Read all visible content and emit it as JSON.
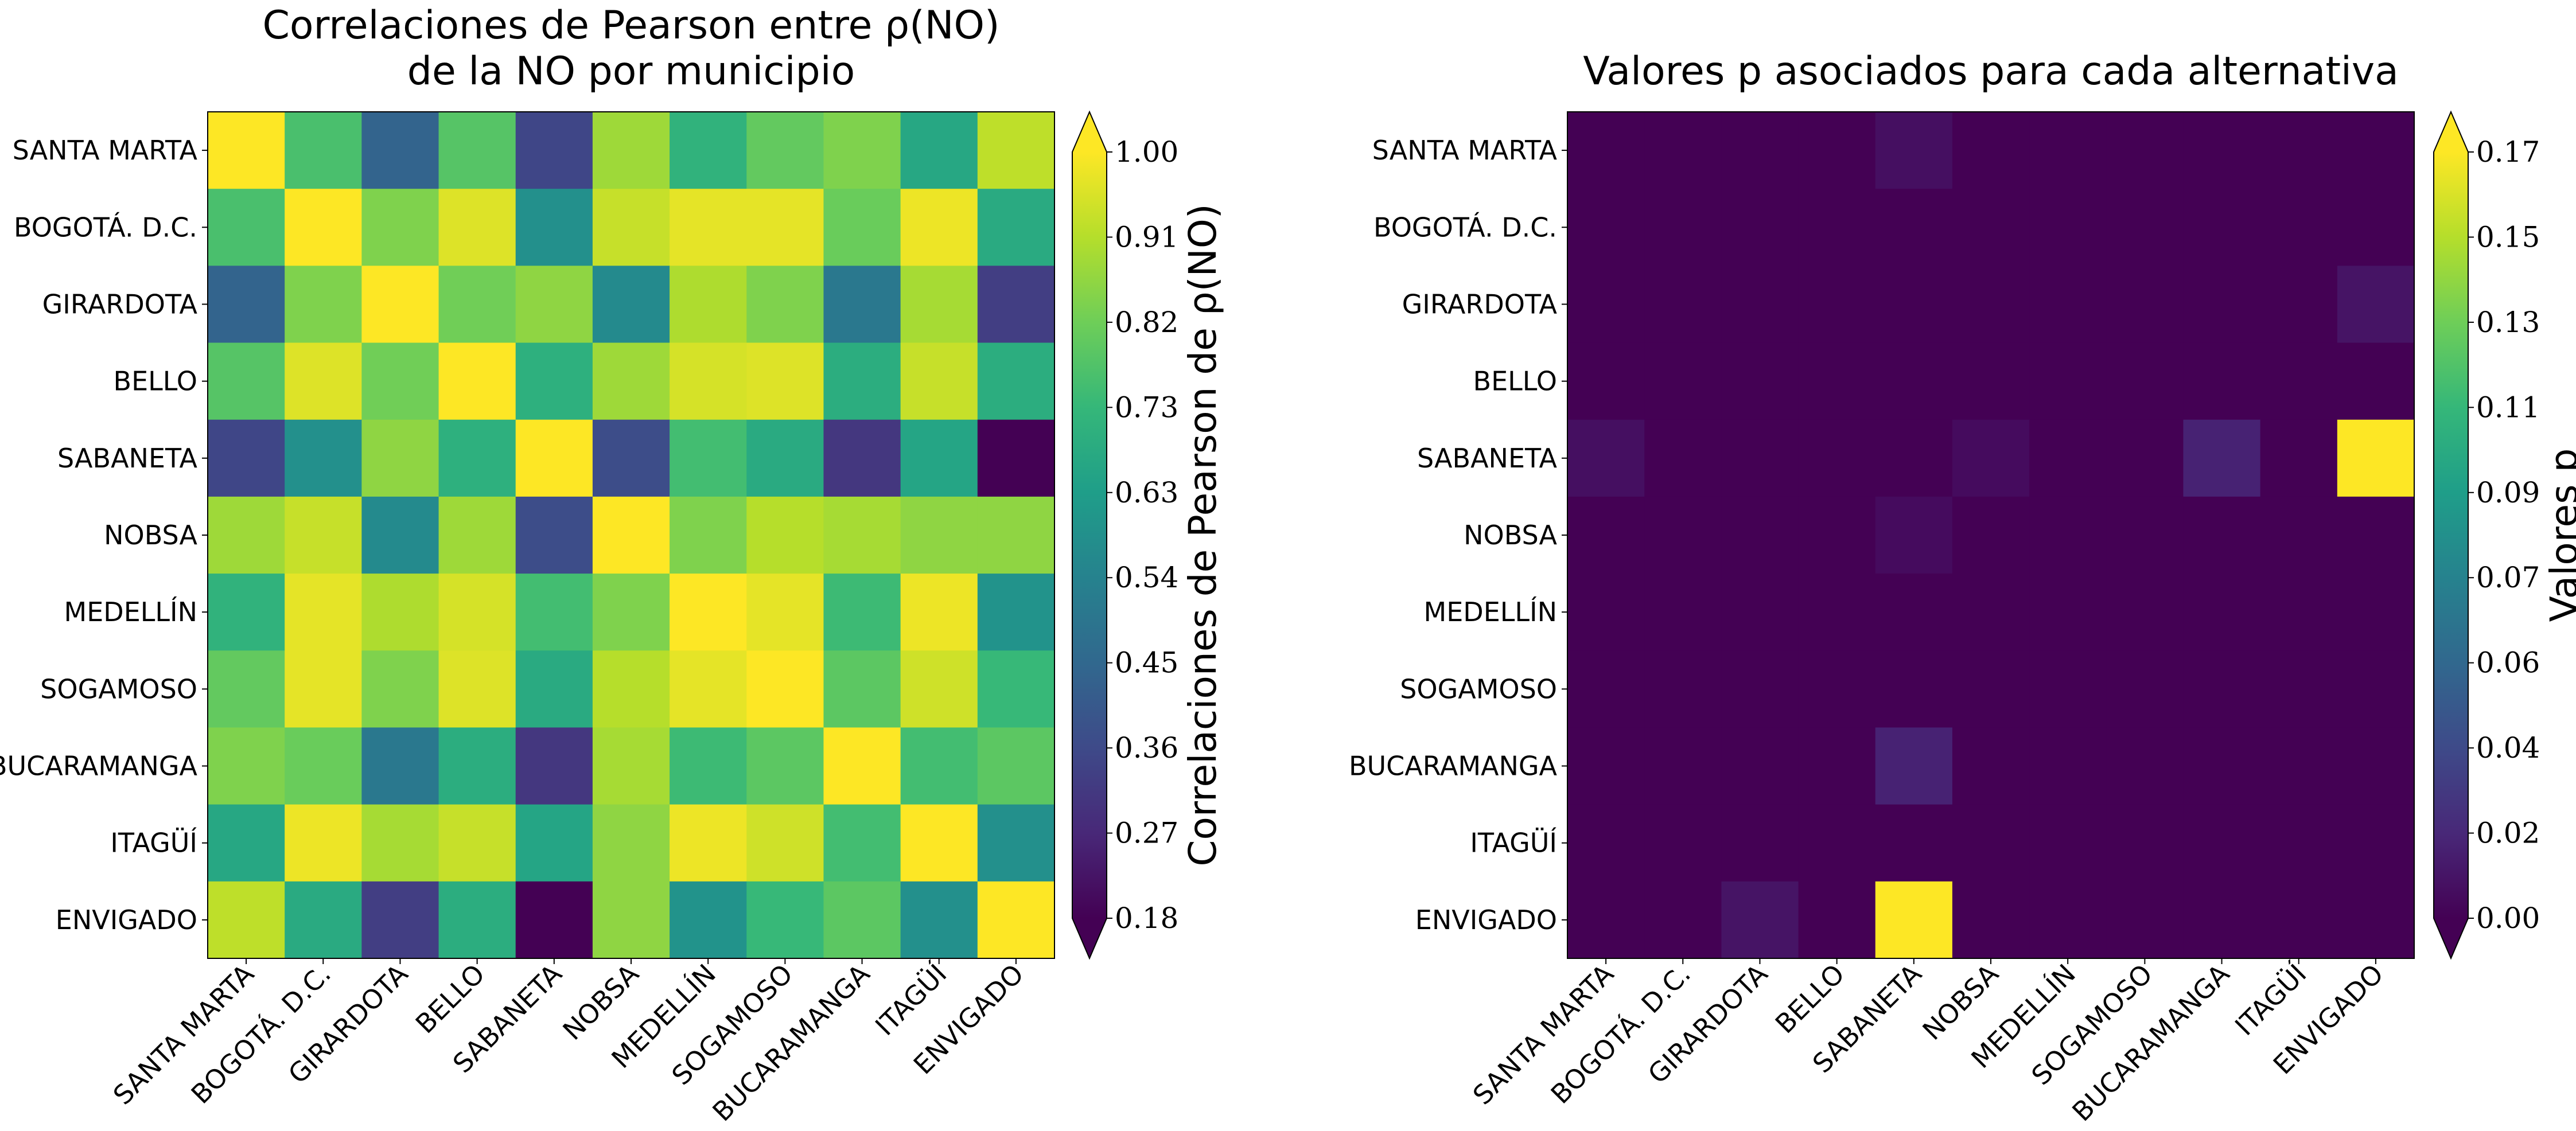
{
  "chart_data": [
    {
      "type": "heatmap",
      "title": "Correlaciones de Pearson entre ρ(NO) de la NO por municipio",
      "title_lines": [
        "Correlaciones de Pearson entre ρ(NO)",
        "de la NO por municipio"
      ],
      "x_categories": [
        "SANTA MARTA",
        "BOGOTÁ. D.C.",
        "GIRARDOTA",
        "BELLO",
        "SABANETA",
        "NOBSA",
        "MEDELLÍN",
        "SOGAMOSO",
        "BUCARAMANGA",
        "ITAGÜÍ",
        "ENVIGADO"
      ],
      "y_categories": [
        "SANTA MARTA",
        "BOGOTÁ. D.C.",
        "GIRARDOTA",
        "BELLO",
        "SABANETA",
        "NOBSA",
        "MEDELLÍN",
        "SOGAMOSO",
        "BUCARAMANGA",
        "ITAGÜÍ",
        "ENVIGADO"
      ],
      "values": [
        [
          1.0,
          0.76,
          0.44,
          0.78,
          0.35,
          0.88,
          0.71,
          0.8,
          0.84,
          0.67,
          0.92
        ],
        [
          0.76,
          1.0,
          0.84,
          0.96,
          0.59,
          0.93,
          0.97,
          0.97,
          0.81,
          0.98,
          0.68
        ],
        [
          0.44,
          0.84,
          1.0,
          0.82,
          0.86,
          0.57,
          0.9,
          0.84,
          0.51,
          0.89,
          0.33
        ],
        [
          0.78,
          0.96,
          0.82,
          1.0,
          0.7,
          0.88,
          0.95,
          0.96,
          0.69,
          0.93,
          0.69
        ],
        [
          0.35,
          0.59,
          0.86,
          0.7,
          1.0,
          0.37,
          0.75,
          0.68,
          0.31,
          0.66,
          0.18
        ],
        [
          0.88,
          0.93,
          0.57,
          0.88,
          0.37,
          1.0,
          0.84,
          0.91,
          0.89,
          0.86,
          0.86
        ],
        [
          0.71,
          0.97,
          0.9,
          0.95,
          0.75,
          0.84,
          1.0,
          0.97,
          0.74,
          0.98,
          0.6
        ],
        [
          0.8,
          0.97,
          0.84,
          0.96,
          0.68,
          0.91,
          0.97,
          1.0,
          0.79,
          0.94,
          0.73
        ],
        [
          0.84,
          0.81,
          0.51,
          0.69,
          0.31,
          0.89,
          0.74,
          0.79,
          1.0,
          0.75,
          0.79
        ],
        [
          0.67,
          0.98,
          0.89,
          0.93,
          0.66,
          0.86,
          0.98,
          0.94,
          0.75,
          1.0,
          0.59
        ],
        [
          0.92,
          0.68,
          0.33,
          0.69,
          0.18,
          0.86,
          0.6,
          0.73,
          0.79,
          0.59,
          1.0
        ]
      ],
      "colorbar": {
        "label": "Correlaciones de Pearson de ρ(NO)",
        "ticks": [
          "0.18",
          "0.27",
          "0.36",
          "0.45",
          "0.54",
          "0.63",
          "0.73",
          "0.82",
          "0.91",
          "1.00"
        ],
        "range": [
          0.18,
          1.0
        ],
        "extend": "both"
      },
      "colormap": "viridis"
    },
    {
      "type": "heatmap",
      "title": "Valores p asociados para cada alternativa",
      "title_lines": [
        "Valores p asociados para cada alternativa"
      ],
      "x_categories": [
        "SANTA MARTA",
        "BOGOTÁ. D.C.",
        "GIRARDOTA",
        "BELLO",
        "SABANETA",
        "NOBSA",
        "MEDELLÍN",
        "SOGAMOSO",
        "BUCARAMANGA",
        "ITAGÜÍ",
        "ENVIGADO"
      ],
      "y_categories": [
        "SANTA MARTA",
        "BOGOTÁ. D.C.",
        "GIRARDOTA",
        "BELLO",
        "SABANETA",
        "NOBSA",
        "MEDELLÍN",
        "SOGAMOSO",
        "BUCARAMANGA",
        "ITAGÜÍ",
        "ENVIGADO"
      ],
      "values": [
        [
          0.0,
          0.0,
          0.0,
          0.0,
          0.007,
          0.0,
          0.0,
          0.0,
          0.0,
          0.0,
          0.0
        ],
        [
          0.0,
          0.0,
          0.0,
          0.0,
          0.0,
          0.0,
          0.0,
          0.0,
          0.0,
          0.0,
          0.0
        ],
        [
          0.0,
          0.0,
          0.0,
          0.0,
          0.0,
          0.0,
          0.0,
          0.0,
          0.0,
          0.0,
          0.009
        ],
        [
          0.0,
          0.0,
          0.0,
          0.0,
          0.0,
          0.0,
          0.0,
          0.0,
          0.0,
          0.0,
          0.0
        ],
        [
          0.007,
          0.0,
          0.0,
          0.0,
          0.0,
          0.005,
          0.0,
          0.0,
          0.016,
          0.0,
          0.17
        ],
        [
          0.0,
          0.0,
          0.0,
          0.0,
          0.005,
          0.0,
          0.0,
          0.0,
          0.0,
          0.0,
          0.0
        ],
        [
          0.0,
          0.0,
          0.0,
          0.0,
          0.0,
          0.0,
          0.0,
          0.0,
          0.0,
          0.0,
          0.0
        ],
        [
          0.0,
          0.0,
          0.0,
          0.0,
          0.0,
          0.0,
          0.0,
          0.0,
          0.0,
          0.0,
          0.0
        ],
        [
          0.0,
          0.0,
          0.0,
          0.0,
          0.016,
          0.0,
          0.0,
          0.0,
          0.0,
          0.0,
          0.0
        ],
        [
          0.0,
          0.0,
          0.0,
          0.0,
          0.0,
          0.0,
          0.0,
          0.0,
          0.0,
          0.0,
          0.0
        ],
        [
          0.0,
          0.0,
          0.009,
          0.0,
          0.17,
          0.0,
          0.0,
          0.0,
          0.0,
          0.0,
          0.0
        ]
      ],
      "colorbar": {
        "label": "Valores p",
        "ticks": [
          "0.00",
          "0.02",
          "0.04",
          "0.06",
          "0.07",
          "0.09",
          "0.11",
          "0.13",
          "0.15",
          "0.17"
        ],
        "range": [
          0.0,
          0.17
        ],
        "extend": "both"
      },
      "colormap": "viridis"
    }
  ]
}
